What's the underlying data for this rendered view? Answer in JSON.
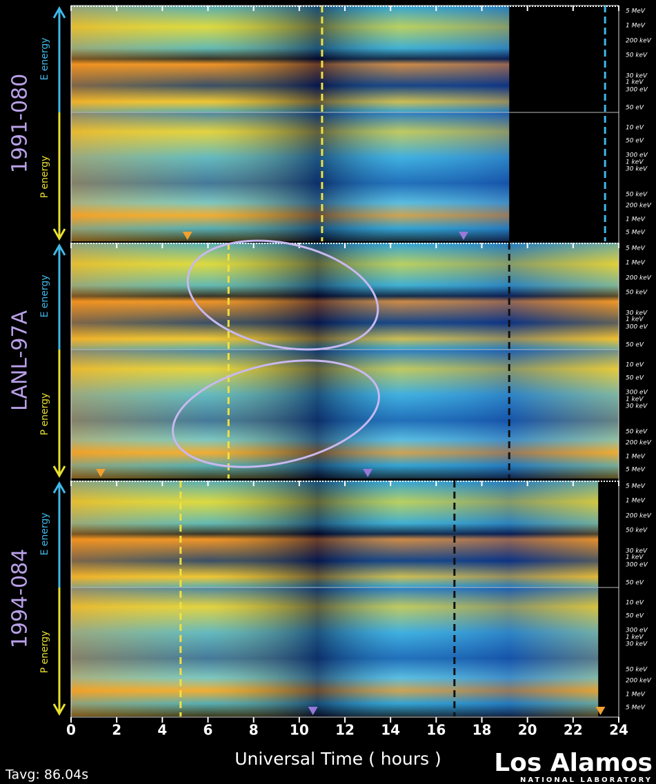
{
  "chart_data": {
    "type": "spectrogram",
    "xlabel": "Universal Time ( hours )",
    "xlim": [
      0,
      24
    ],
    "xticks": [
      0,
      2,
      4,
      6,
      8,
      10,
      12,
      14,
      16,
      18,
      20,
      22,
      24
    ],
    "panels": [
      {
        "name": "1991-080",
        "e_label": "E energy",
        "p_label": "P energy",
        "e_ticks": [
          "5 MeV",
          "1 MeV",
          "200 keV",
          "50 keV",
          "30 keV",
          "1 keV",
          "300 eV",
          "50 eV"
        ],
        "p_ticks": [
          "10 eV",
          "50 eV",
          "300 eV",
          "1 keV",
          "30 keV",
          "50 keV",
          "200 keV",
          "1 MeV",
          "5 MeV"
        ],
        "dashed_lines": [
          {
            "x": 11.0,
            "color": "#f0e040"
          },
          {
            "x": 23.4,
            "color": "#40b8e8"
          }
        ],
        "markers": [
          {
            "x": 5.1,
            "color": "#f0a030"
          },
          {
            "x": 17.2,
            "color": "#9878d8"
          }
        ],
        "data_end": 19.2
      },
      {
        "name": "LANL-97A",
        "e_label": "E energy",
        "p_label": "P energy",
        "e_ticks": [
          "5 MeV",
          "1 MeV",
          "200 keV",
          "50 keV",
          "30 keV",
          "1 keV",
          "300 eV",
          "50 eV"
        ],
        "p_ticks": [
          "10 eV",
          "50 eV",
          "300 eV",
          "1 keV",
          "30 keV",
          "50 keV",
          "200 keV",
          "1 MeV",
          "5 MeV"
        ],
        "dashed_lines": [
          {
            "x": 6.9,
            "color": "#f0e040"
          },
          {
            "x": 19.2,
            "color": "#101010"
          }
        ],
        "markers": [
          {
            "x": 1.3,
            "color": "#f0a030"
          },
          {
            "x": 13.0,
            "color": "#9878d8"
          }
        ]
      },
      {
        "name": "1994-084",
        "e_label": "E energy",
        "p_label": "P energy",
        "e_ticks": [
          "5 MeV",
          "1 MeV",
          "200 keV",
          "50 keV",
          "30 keV",
          "1 keV",
          "300 eV",
          "50 eV"
        ],
        "p_ticks": [
          "10 eV",
          "50 eV",
          "300 eV",
          "1 keV",
          "30 keV",
          "50 keV",
          "200 keV",
          "1 MeV",
          "5 MeV"
        ],
        "dashed_lines": [
          {
            "x": 4.8,
            "color": "#f0e040"
          },
          {
            "x": 16.8,
            "color": "#101010"
          }
        ],
        "markers": [
          {
            "x": 10.6,
            "color": "#9878d8"
          },
          {
            "x": 23.2,
            "color": "#f0a030"
          }
        ],
        "data_end": 23.1
      }
    ]
  },
  "footer": {
    "tavg": "Tavg: 86.04s",
    "logo": "Los Alamos",
    "logo_sub": "NATIONAL LABORATORY"
  }
}
